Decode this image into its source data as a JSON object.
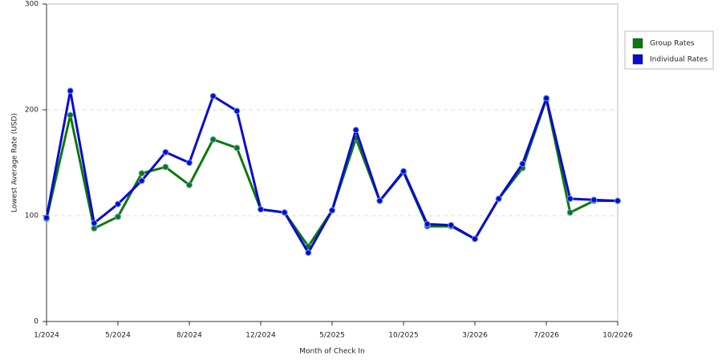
{
  "chart_data": {
    "type": "line",
    "x_label": "Month of Check In",
    "y_label": "Lowest Average Rate (USD)",
    "categories": [
      "1/2024",
      null,
      null,
      "5/2024",
      null,
      null,
      "8/2024",
      null,
      null,
      "12/2024",
      null,
      null,
      "5/2025",
      null,
      null,
      "10/2025",
      null,
      null,
      "3/2026",
      null,
      null,
      "7/2026",
      null,
      null,
      "10/2026"
    ],
    "series": [
      {
        "name": "Group Rates",
        "color": "#0a7a0a",
        "values": [
          97,
          195,
          88,
          99,
          140,
          146,
          129,
          172,
          164,
          106,
          103,
          71,
          105,
          173,
          114,
          141,
          90,
          90,
          78,
          116,
          145,
          210,
          103,
          114,
          114
        ]
      },
      {
        "name": "Individual Rates",
        "color": "#0a0ad2",
        "values": [
          98,
          218,
          93,
          111,
          133,
          160,
          150,
          213,
          199,
          106,
          103,
          65,
          105,
          181,
          114,
          142,
          92,
          91,
          78,
          116,
          149,
          211,
          116,
          115,
          114
        ]
      }
    ],
    "ylim": [
      0,
      300
    ],
    "yticks": [
      0,
      100,
      200,
      300
    ],
    "grid": true
  }
}
